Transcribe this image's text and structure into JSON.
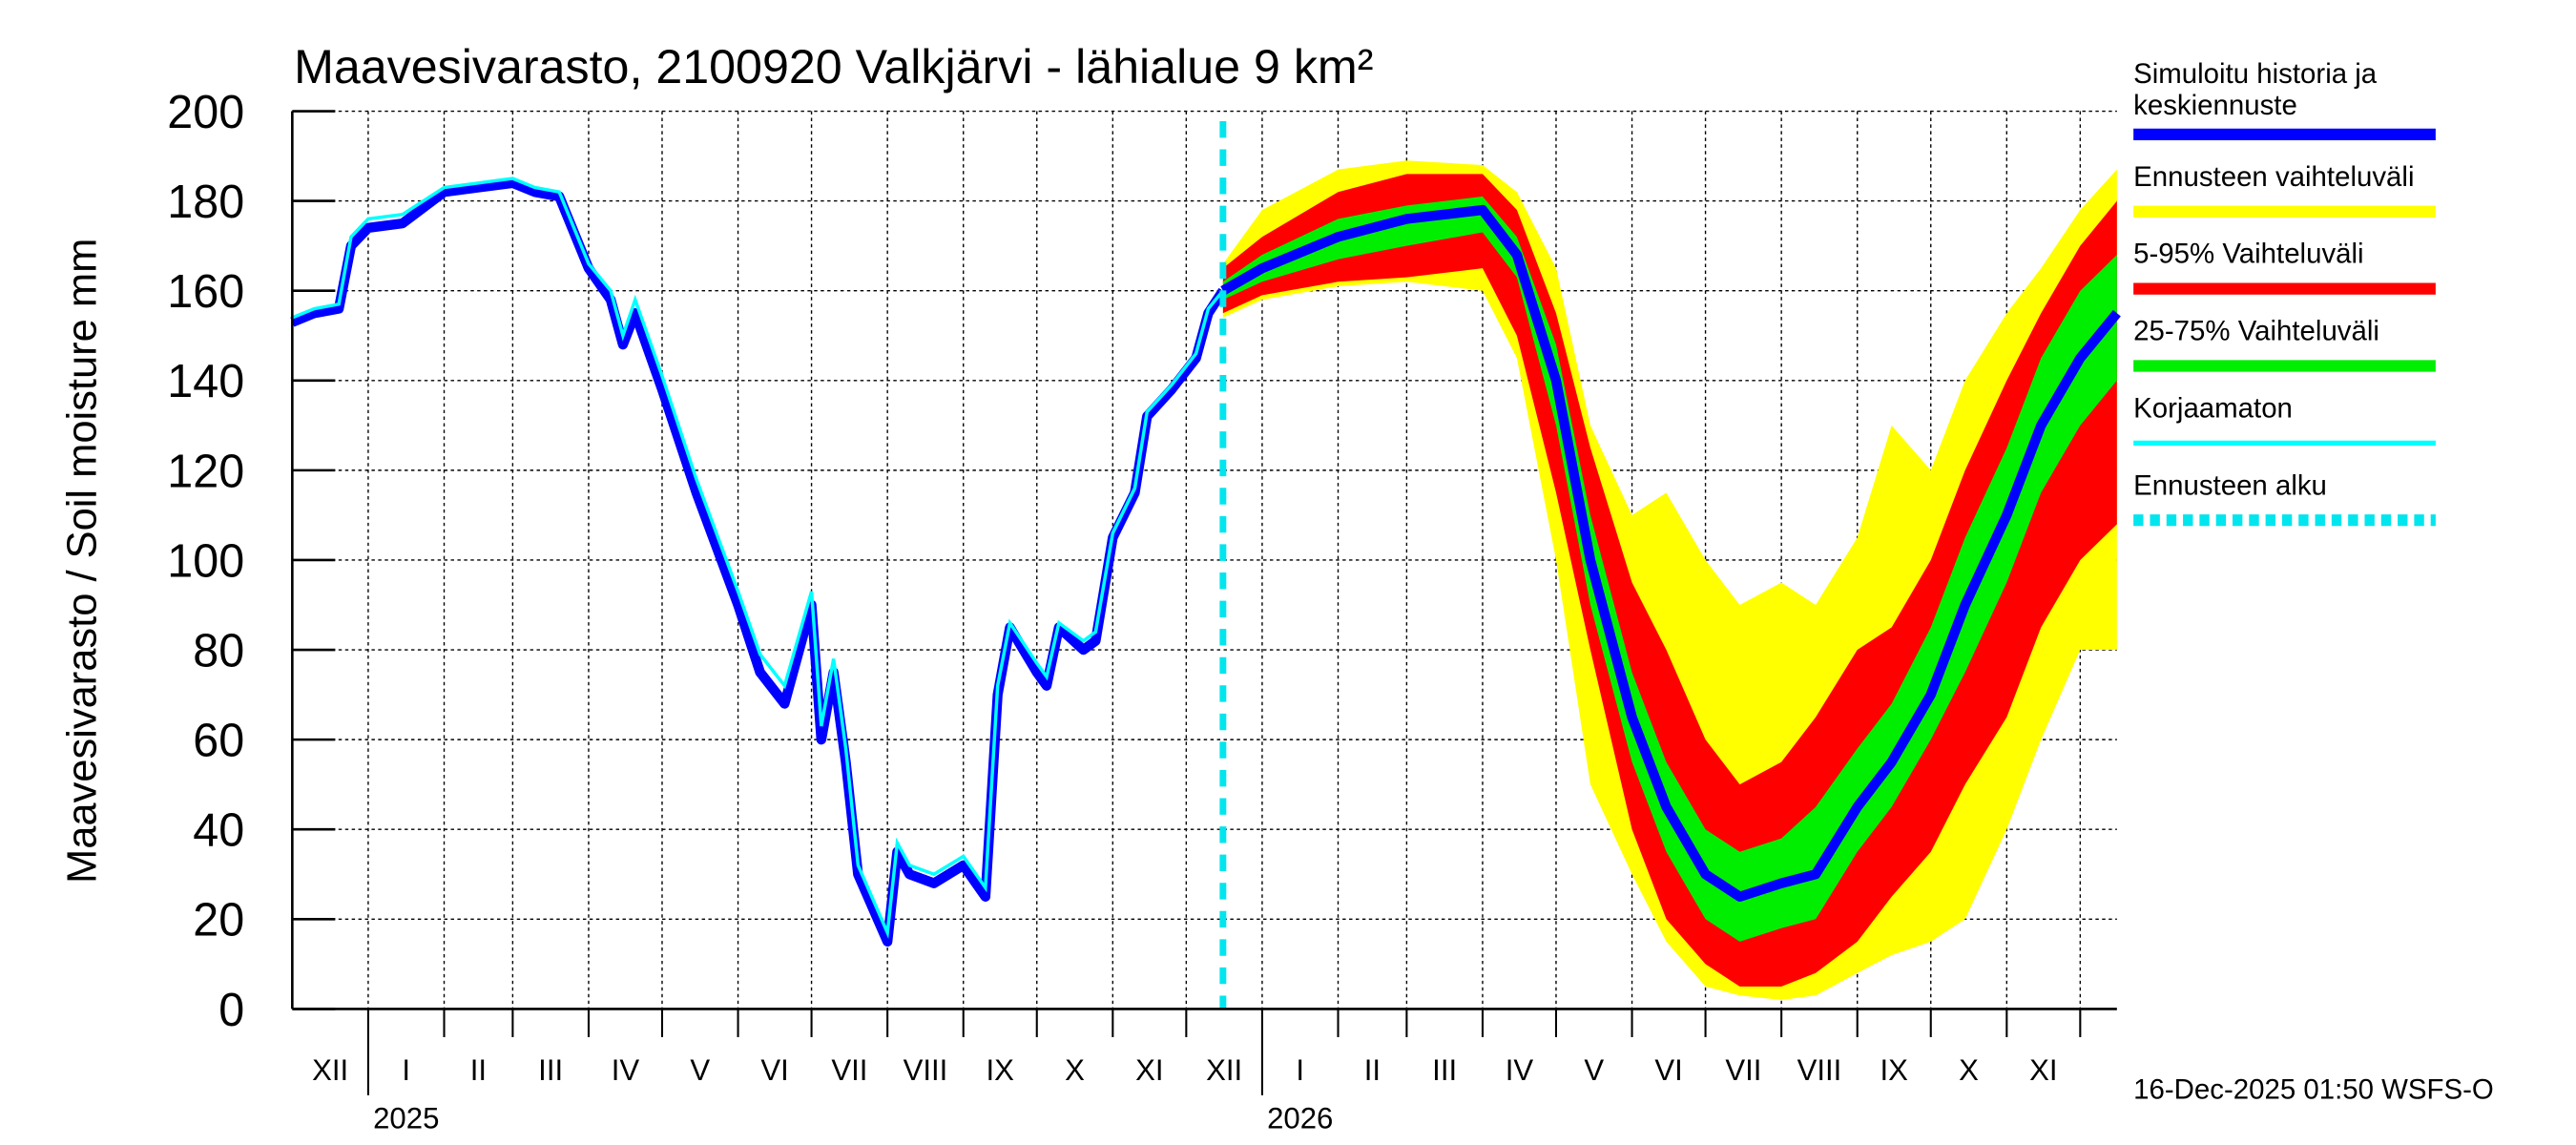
{
  "chart_data": {
    "type": "area",
    "title": "Maavesivarasto, 2100920 Valkjärvi - lähialue 9 km²",
    "ylabel": "Maavesivarasto / Soil moisture   mm",
    "ylim": [
      0,
      200
    ],
    "yticks": [
      0,
      20,
      40,
      60,
      80,
      100,
      120,
      140,
      160,
      180,
      200
    ],
    "xlim": [
      "2024-12-01",
      "2026-12-16"
    ],
    "month_labels": [
      "XII",
      "I",
      "II",
      "III",
      "IV",
      "V",
      "VI",
      "VII",
      "VIII",
      "IX",
      "X",
      "XI",
      "XII",
      "I",
      "II",
      "III",
      "IV",
      "V",
      "VI",
      "VII",
      "VIII",
      "IX",
      "X",
      "XI"
    ],
    "year_labels": [
      "2025",
      "2026"
    ],
    "forecast_start": "2025-12-16",
    "grid": true,
    "legend_placement": "right",
    "colors": {
      "history": "#0000ff",
      "uncorrected": "#00ffff",
      "range": "#ffff00",
      "p5_95": "#ff0000",
      "p25_75": "#00ee00",
      "forecast_start": "#00e5ee"
    },
    "legend": [
      "Simuloitu historia ja keskiennuste",
      "Ennusteen vaihteluväli",
      "5-95% Vaihteluväli",
      "25-75% Vaihteluväli",
      "Korjaamaton",
      "Ennusteen alku"
    ],
    "history": {
      "x": [
        "2024-12-01",
        "2024-12-10",
        "2024-12-20",
        "2024-12-25",
        "2025-01-01",
        "2025-01-15",
        "2025-02-01",
        "2025-02-15",
        "2025-03-01",
        "2025-03-10",
        "2025-03-20",
        "2025-04-01",
        "2025-04-10",
        "2025-04-15",
        "2025-04-20",
        "2025-05-01",
        "2025-05-15",
        "2025-06-01",
        "2025-06-10",
        "2025-06-20",
        "2025-07-01",
        "2025-07-05",
        "2025-07-10",
        "2025-07-15",
        "2025-07-20",
        "2025-08-01",
        "2025-08-05",
        "2025-08-10",
        "2025-08-20",
        "2025-09-01",
        "2025-09-10",
        "2025-09-15",
        "2025-09-20",
        "2025-10-01",
        "2025-10-05",
        "2025-10-10",
        "2025-10-20",
        "2025-10-25",
        "2025-11-01",
        "2025-11-10",
        "2025-11-15",
        "2025-11-25",
        "2025-12-05",
        "2025-12-10",
        "2025-12-16"
      ],
      "values": [
        153,
        155,
        156,
        170,
        174,
        175,
        182,
        183,
        184,
        182,
        181,
        165,
        158,
        148,
        155,
        138,
        115,
        90,
        75,
        68,
        90,
        60,
        75,
        55,
        30,
        15,
        35,
        30,
        28,
        32,
        25,
        70,
        85,
        75,
        72,
        85,
        80,
        82,
        105,
        115,
        132,
        138,
        145,
        155,
        160
      ]
    },
    "uncorrected": {
      "values": [
        154,
        156,
        157,
        172,
        176,
        177,
        183,
        184,
        185,
        183,
        182,
        166,
        160,
        150,
        158,
        141,
        118,
        93,
        79,
        72,
        93,
        63,
        78,
        58,
        32,
        17,
        37,
        32,
        30,
        34,
        27,
        72,
        86,
        77,
        74,
        86,
        82,
        84,
        106,
        116,
        133,
        139,
        146,
        156,
        160
      ]
    },
    "forecast": {
      "x": [
        "2025-12-16",
        "2026-01-01",
        "2026-02-01",
        "2026-03-01",
        "2026-04-01",
        "2026-04-15",
        "2026-05-01",
        "2026-05-15",
        "2026-06-01",
        "2026-06-15",
        "2026-07-01",
        "2026-07-15",
        "2026-08-01",
        "2026-08-15",
        "2026-09-01",
        "2026-09-15",
        "2026-10-01",
        "2026-10-15",
        "2026-11-01",
        "2026-11-15",
        "2026-12-01",
        "2026-12-16"
      ],
      "median": [
        160,
        165,
        172,
        176,
        178,
        168,
        140,
        100,
        65,
        45,
        30,
        25,
        28,
        30,
        45,
        55,
        70,
        90,
        110,
        130,
        145,
        155
      ],
      "p25": [
        158,
        162,
        167,
        170,
        173,
        163,
        130,
        90,
        55,
        35,
        20,
        15,
        18,
        20,
        35,
        45,
        60,
        75,
        95,
        115,
        130,
        140
      ],
      "p75": [
        162,
        168,
        176,
        179,
        181,
        172,
        148,
        110,
        75,
        55,
        40,
        35,
        38,
        45,
        58,
        68,
        85,
        105,
        125,
        145,
        160,
        168
      ],
      "p5": [
        155,
        159,
        162,
        163,
        165,
        150,
        115,
        80,
        40,
        20,
        10,
        5,
        5,
        8,
        15,
        25,
        35,
        50,
        65,
        85,
        100,
        108
      ],
      "p95": [
        165,
        172,
        182,
        186,
        186,
        178,
        155,
        125,
        95,
        80,
        60,
        50,
        55,
        65,
        80,
        85,
        100,
        120,
        140,
        155,
        170,
        180
      ],
      "min": [
        154,
        158,
        161,
        162,
        160,
        145,
        100,
        50,
        30,
        15,
        5,
        3,
        2,
        3,
        8,
        12,
        15,
        20,
        40,
        60,
        80,
        80
      ],
      "max": [
        166,
        178,
        187,
        189,
        188,
        182,
        165,
        130,
        110,
        115,
        100,
        90,
        95,
        90,
        105,
        130,
        120,
        140,
        155,
        165,
        178,
        187
      ]
    }
  },
  "footer": {
    "timestamp": "16-Dec-2025 01:50 WSFS-O"
  }
}
